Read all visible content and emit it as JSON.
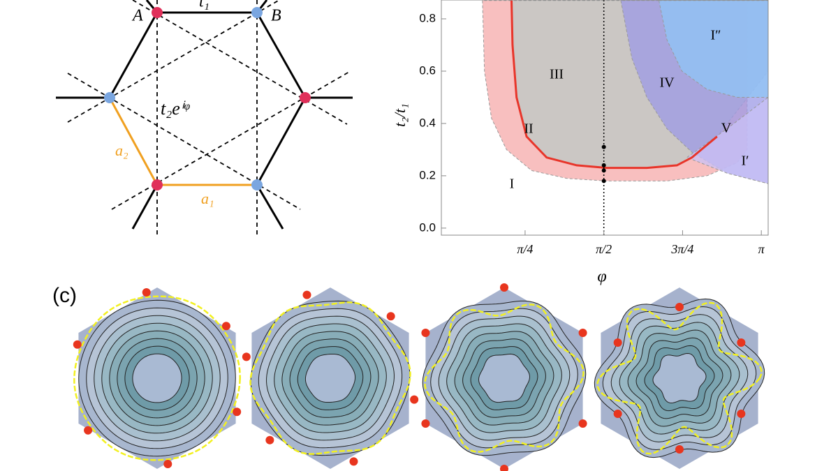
{
  "lattice": {
    "site_a": "A",
    "site_b": "B",
    "hop_1": "t₁",
    "hop_2": "t₂eⁱᵠ",
    "vec_2": "a₂",
    "vec_1": "a₁"
  },
  "chart_data": {
    "type": "phase",
    "xlabel": "φ",
    "ylabel": "t₂/t₁",
    "xlim": [
      -0.05,
      3.21
    ],
    "ylim": [
      -0.027,
      0.872
    ],
    "xticks": [
      {
        "value": 0.7854,
        "label": "π/4"
      },
      {
        "value": 1.5708,
        "label": "π/2"
      },
      {
        "value": 2.3562,
        "label": "3π/4"
      },
      {
        "value": 3.1416,
        "label": "π"
      }
    ],
    "yticks": [
      {
        "value": 0,
        "label": "0.0"
      },
      {
        "value": 0.2,
        "label": "0.2"
      },
      {
        "value": 0.4,
        "label": "0.4"
      },
      {
        "value": 0.6,
        "label": "0.6"
      },
      {
        "value": 0.8,
        "label": "0.8"
      }
    ],
    "regions": [
      {
        "color": "#f6a9a9",
        "x": [
          0.36,
          0.38,
          0.45,
          0.6,
          0.85,
          1.2,
          1.6,
          2.2,
          2.6,
          2.9,
          3.0,
          3.0
        ],
        "y": [
          0.87,
          0.6,
          0.42,
          0.3,
          0.22,
          0.19,
          0.18,
          0.18,
          0.2,
          0.25,
          0.3,
          0.87
        ]
      },
      {
        "color": "#bccac6",
        "x": [
          0.65,
          0.66,
          0.7,
          0.8,
          1.0,
          1.3,
          1.6,
          2.0,
          2.3,
          2.45,
          2.7,
          3.21,
          3.21
        ],
        "y": [
          0.87,
          0.7,
          0.5,
          0.35,
          0.27,
          0.24,
          0.23,
          0.23,
          0.24,
          0.27,
          0.35,
          0.6,
          0.87
        ]
      },
      {
        "color": "#9c9ae6",
        "x": [
          1.74,
          1.85,
          2.0,
          2.2,
          2.45,
          2.8,
          3.21,
          3.21
        ],
        "y": [
          0.87,
          0.65,
          0.5,
          0.38,
          0.29,
          0.21,
          0.17,
          0.87
        ]
      },
      {
        "color": "#8fc6f6",
        "x": [
          2.12,
          2.2,
          2.35,
          2.6,
          2.9,
          3.21,
          3.21
        ],
        "y": [
          0.87,
          0.72,
          0.6,
          0.53,
          0.5,
          0.5,
          0.87
        ]
      },
      {
        "color": "#c9c2f7",
        "x": [
          2.4,
          2.8,
          3.21,
          3.21,
          2.8
        ],
        "y": [
          0.27,
          0.38,
          0.5,
          0.17,
          0.21
        ]
      }
    ],
    "series": [
      {
        "color": "#e8352a",
        "x": [
          0.65,
          0.66,
          0.7,
          0.8,
          1.0,
          1.3,
          1.6,
          2.0,
          2.3,
          2.45,
          2.7
        ],
        "y": [
          0.87,
          0.7,
          0.5,
          0.35,
          0.27,
          0.24,
          0.23,
          0.23,
          0.24,
          0.27,
          0.35
        ]
      }
    ],
    "cut": {
      "x": 1.5708,
      "points": [
        0.31,
        0.24,
        0.22,
        0.18
      ]
    },
    "annotations": [
      "I",
      "II",
      "III",
      "IV",
      "V",
      "I′",
      "I″"
    ]
  },
  "panel_c": {
    "label": "(c)"
  }
}
